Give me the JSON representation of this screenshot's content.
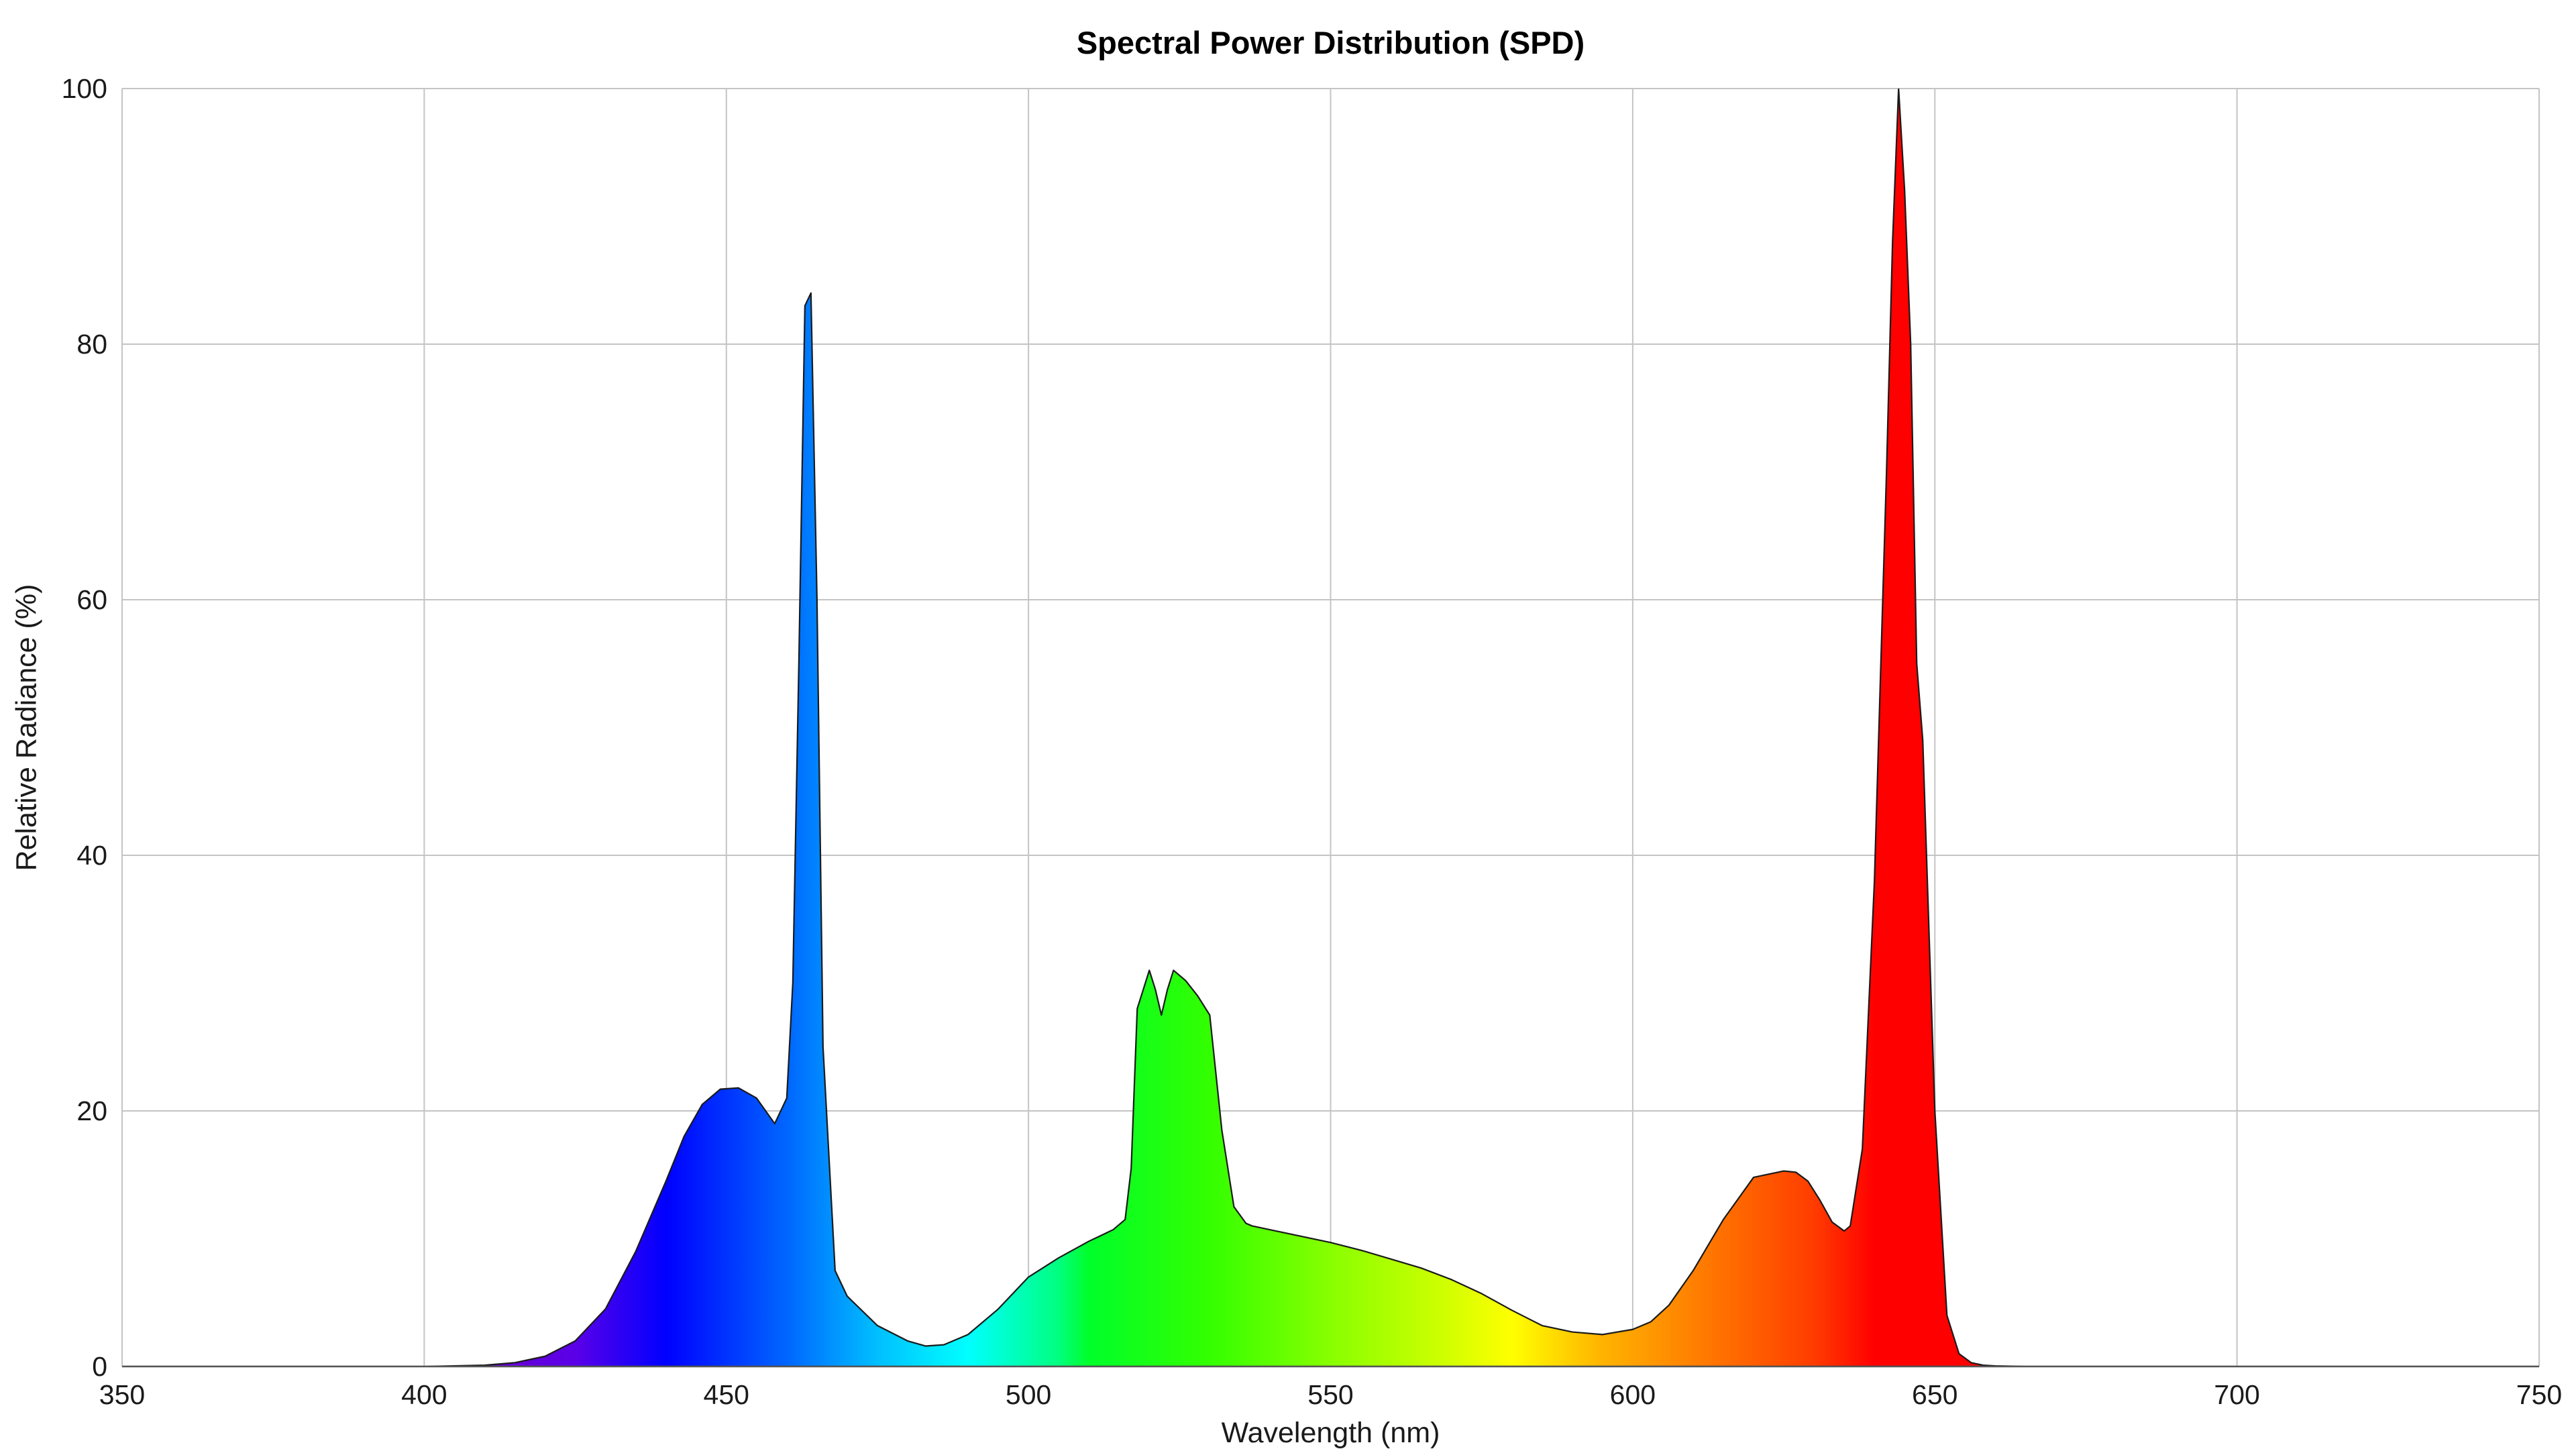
{
  "chart_data": {
    "type": "area",
    "title": "Spectral Power Distribution (SPD)",
    "xlabel": "Wavelength (nm)",
    "ylabel": "Relative Radiance (%)",
    "xlim": [
      350,
      750
    ],
    "ylim": [
      0,
      100
    ],
    "x_ticks": [
      "350",
      "400",
      "450",
      "500",
      "550",
      "600",
      "650",
      "700",
      "750"
    ],
    "y_ticks": [
      "0",
      "20",
      "40",
      "60",
      "80",
      "100"
    ],
    "grid": true,
    "fill": "visible-spectrum gradient (violet to red) under the curve, black outline",
    "series": [
      {
        "x": [
          350,
          380,
          400,
          410,
          415,
          420,
          425,
          430,
          435,
          440,
          443,
          446,
          449,
          452,
          455,
          458,
          460,
          461,
          462,
          463,
          464,
          465,
          466,
          468,
          470,
          475,
          480,
          483,
          486,
          490,
          495,
          500,
          505,
          510,
          514,
          516,
          517,
          518,
          519,
          520,
          521,
          522,
          523,
          524,
          526,
          528,
          530,
          532,
          534,
          536,
          537,
          540,
          545,
          550,
          555,
          560,
          565,
          570,
          575,
          580,
          585,
          590,
          595,
          600,
          603,
          606,
          610,
          615,
          620,
          625,
          627,
          629,
          631,
          633,
          635,
          636,
          638,
          640,
          642,
          643,
          644,
          645,
          646,
          647,
          648,
          650,
          652,
          654,
          656,
          658,
          660,
          665,
          670,
          700,
          750
        ],
        "y": [
          0,
          0,
          0,
          0.1,
          0.3,
          0.8,
          2,
          4.5,
          9,
          14.5,
          18,
          20.5,
          21.7,
          21.8,
          21,
          19,
          21,
          30,
          55,
          83,
          84,
          60,
          25,
          7.5,
          5.5,
          3.2,
          2,
          1.6,
          1.7,
          2.5,
          4.5,
          7,
          8.5,
          9.8,
          10.7,
          11.5,
          15.5,
          28,
          29.5,
          31,
          29.5,
          27.5,
          29.5,
          31,
          30.2,
          29,
          27.5,
          18.5,
          12.5,
          11.2,
          11,
          10.7,
          10.2,
          9.7,
          9.1,
          8.4,
          7.7,
          6.8,
          5.7,
          4.4,
          3.2,
          2.7,
          2.5,
          2.9,
          3.5,
          4.8,
          7.5,
          11.5,
          14.8,
          15.3,
          15.2,
          14.5,
          13,
          11.3,
          10.6,
          11,
          17,
          38,
          70,
          88,
          100,
          92,
          80,
          55,
          49,
          20,
          4,
          1,
          0.3,
          0.1,
          0.05,
          0,
          0,
          0,
          0
        ]
      }
    ]
  }
}
